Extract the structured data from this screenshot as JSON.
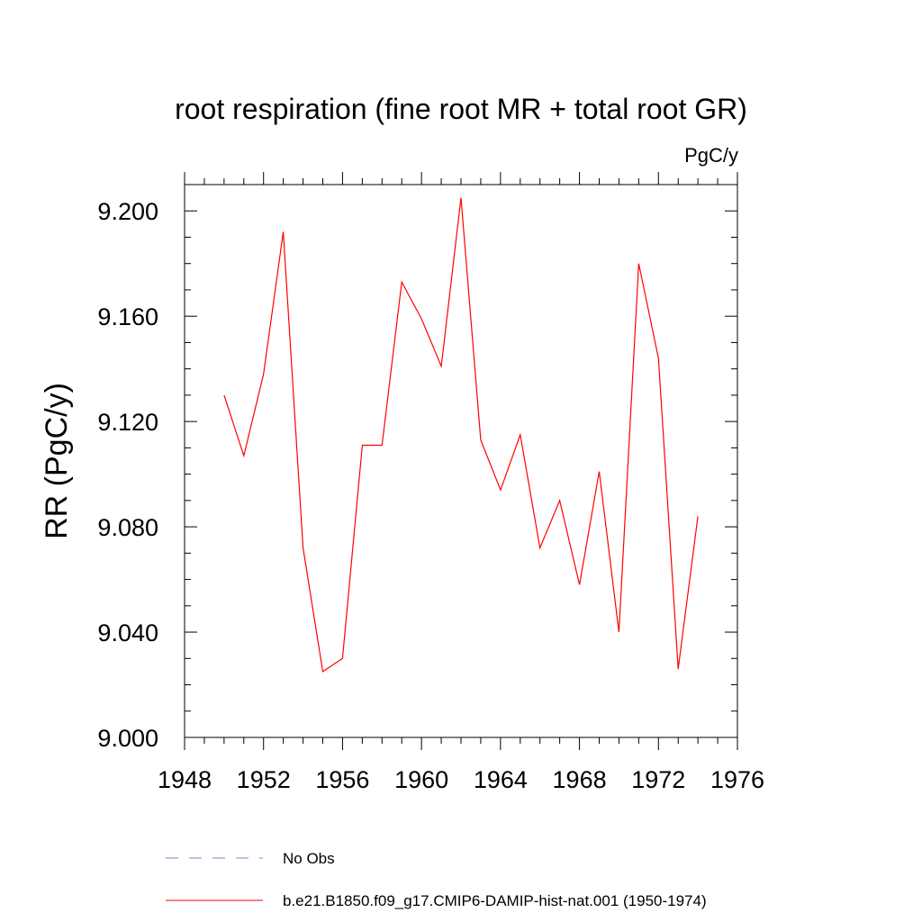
{
  "chart_data": {
    "type": "line",
    "title": "root respiration (fine root MR + total root GR)",
    "units": "PgC/y",
    "xlabel": "",
    "ylabel": "RR  (PgC/y)",
    "xlim": [
      1948,
      1976
    ],
    "ylim": [
      9.0,
      9.21
    ],
    "x_ticks": [
      "1948",
      "1952",
      "1956",
      "1960",
      "1964",
      "1968",
      "1972",
      "1976"
    ],
    "y_ticks": [
      "9.000",
      "9.040",
      "9.080",
      "9.120",
      "9.160",
      "9.200"
    ],
    "grid": false,
    "legend_position": "bottom",
    "series": [
      {
        "name": "b.e21.B1850.f09_g17.CMIP6-DAMIP-hist-nat.001 (1950-1974)",
        "color": "#ff0000",
        "x": [
          1950,
          1951,
          1952,
          1953,
          1954,
          1955,
          1956,
          1957,
          1958,
          1959,
          1960,
          1961,
          1962,
          1963,
          1964,
          1965,
          1966,
          1967,
          1968,
          1969,
          1970,
          1971,
          1972,
          1973,
          1974
        ],
        "y": [
          9.13,
          9.107,
          9.138,
          9.192,
          9.072,
          9.025,
          9.03,
          9.111,
          9.111,
          9.173,
          9.159,
          9.141,
          9.205,
          9.113,
          9.094,
          9.115,
          9.072,
          9.09,
          9.058,
          9.101,
          9.04,
          9.18,
          9.144,
          9.026,
          9.084
        ]
      }
    ],
    "legend": [
      {
        "label": "No Obs",
        "color": "#8a7fd0",
        "dash": true
      },
      {
        "label": "b.e21.B1850.f09_g17.CMIP6-DAMIP-hist-nat.001 (1950-1974)",
        "color": "#ff0000",
        "dash": false
      }
    ]
  }
}
